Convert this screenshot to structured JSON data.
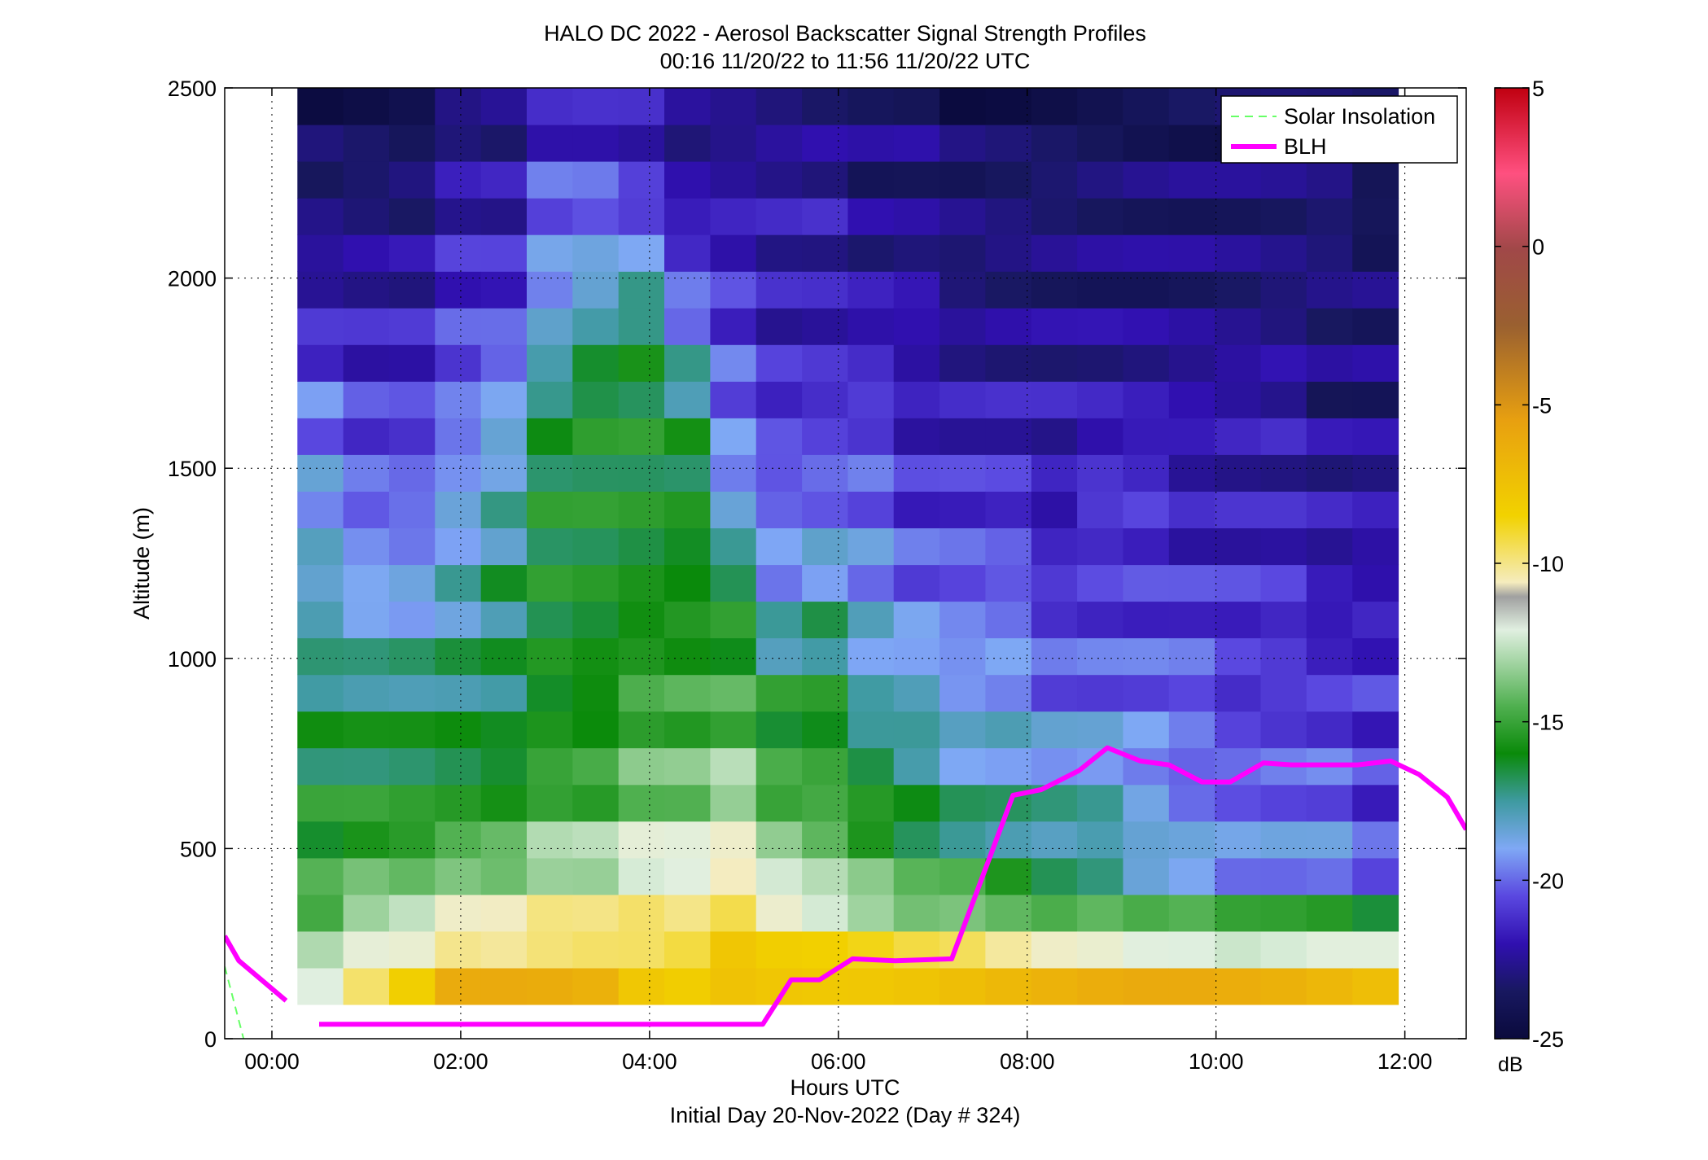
{
  "chart_data": {
    "type": "heatmap",
    "title": "HALO DC 2022 - Aerosol Backscatter Signal Strength Profiles",
    "subtitle": "00:16 11/20/22 to 11:56 11/20/22  UTC",
    "xlabel": "Hours UTC",
    "xlabel2": "Initial Day 20-Nov-2022 (Day # 324)",
    "ylabel": "Altitude (m)",
    "xlim": [
      -0.5,
      12.65
    ],
    "ylim": [
      0,
      2500
    ],
    "x_ticks": [
      0,
      2,
      4,
      6,
      8,
      10,
      12
    ],
    "x_tick_labels": [
      "00:00",
      "02:00",
      "04:00",
      "06:00",
      "08:00",
      "10:00",
      "12:00"
    ],
    "y_ticks": [
      0,
      500,
      1000,
      1500,
      2000,
      2500
    ],
    "y_tick_labels": [
      "0",
      "500",
      "1000",
      "1500",
      "2000",
      "2500"
    ],
    "grid": true,
    "legend_placement": "top-right",
    "colorbar": {
      "label": "dB",
      "range": [
        -25,
        5
      ],
      "ticks": [
        5,
        0,
        -5,
        -10,
        -15,
        -20,
        -25
      ],
      "tick_labels": [
        "5",
        "0",
        "-5",
        "-10",
        "-15",
        "-20",
        "-25"
      ]
    },
    "heatmap": {
      "time_range": [
        0.27,
        11.93
      ],
      "altitude_range": [
        90,
        2500
      ],
      "columns": 24,
      "rows": 25,
      "columns_profile_db": [
        [
          -12,
          -15,
          -16,
          -17,
          -18,
          -19,
          -20,
          -22,
          -23,
          -24
        ],
        [
          -10,
          -14,
          -16,
          -17,
          -19,
          -20,
          -21,
          -22,
          -23,
          -24
        ],
        [
          -9,
          -14,
          -16,
          -17,
          -19,
          -20,
          -21,
          -22,
          -23,
          -24
        ],
        [
          -7,
          -13,
          -16,
          -17,
          -18,
          -19,
          -20,
          -21,
          -22,
          -23
        ],
        [
          -7,
          -13,
          -16,
          -17,
          -17,
          -18,
          -19,
          -21,
          -22,
          -23
        ],
        [
          -7,
          -12,
          -15,
          -16,
          -16,
          -16,
          -17,
          -19,
          -20,
          -22
        ],
        [
          -7,
          -12,
          -15,
          -16,
          -16,
          -16,
          -16,
          -18,
          -20,
          -22
        ],
        [
          -8,
          -11,
          -14,
          -15,
          -16,
          -16,
          -16,
          -17,
          -21,
          -22
        ],
        [
          -8,
          -11,
          -14,
          -15,
          -16,
          -16,
          -17,
          -20,
          -22,
          -23
        ],
        [
          -7,
          -10,
          -13,
          -15,
          -16,
          -19,
          -20,
          -21,
          -22,
          -23
        ],
        [
          -7,
          -12,
          -15,
          -16,
          -19,
          -20,
          -21,
          -22,
          -22,
          -23
        ],
        [
          -7,
          -13,
          -15,
          -16,
          -18,
          -20,
          -21,
          -22,
          -22,
          -23
        ],
        [
          -7,
          -14,
          -16,
          -18,
          -19,
          -20,
          -21,
          -22,
          -23,
          -23
        ],
        [
          -7,
          -15,
          -17,
          -18,
          -20,
          -21,
          -22,
          -22,
          -23,
          -23
        ],
        [
          -7,
          -15,
          -18,
          -19,
          -20,
          -21,
          -22,
          -23,
          -23,
          -24
        ],
        [
          -7,
          -16,
          -18,
          -19,
          -20,
          -21,
          -22,
          -23,
          -23,
          -24
        ],
        [
          -7,
          -17,
          -18,
          -20,
          -21,
          -22,
          -22,
          -23,
          -23,
          -24
        ],
        [
          -7,
          -17,
          -18,
          -20,
          -21,
          -21,
          -22,
          -23,
          -23,
          -24
        ],
        [
          -7,
          -18,
          -19,
          -20,
          -21,
          -21,
          -22,
          -23,
          -23,
          -24
        ],
        [
          -7,
          -18,
          -20,
          -20,
          -21,
          -22,
          -22,
          -23,
          -23,
          -24
        ],
        [
          -7,
          -19,
          -20,
          -21,
          -21,
          -22,
          -22,
          -23,
          -23,
          -24
        ],
        [
          -7,
          -19,
          -20,
          -21,
          -21,
          -22,
          -22,
          -23,
          -23,
          -24
        ],
        [
          -7,
          -19,
          -20,
          -21,
          -22,
          -22,
          -23,
          -23,
          -23,
          -24
        ],
        [
          -7,
          -20,
          -21,
          -21,
          -22,
          -22,
          -23,
          -23,
          -24,
          -24
        ]
      ]
    },
    "series": [
      {
        "name": "Solar Insolation",
        "style": "dashed",
        "color": "#66ff66",
        "x": [
          -0.5,
          -0.3
        ],
        "y": [
          190,
          0
        ]
      },
      {
        "name": "BLH",
        "style": "solid",
        "color": "#ff00ff",
        "segments": [
          {
            "x": [
              -0.5,
              -0.35,
              0.15
            ],
            "y": [
              270,
              205,
              100
            ]
          },
          {
            "x": [
              0.5,
              5.2,
              5.5,
              5.8,
              6.15,
              6.6,
              7.2,
              7.85,
              8.15,
              8.55,
              8.85,
              9.2,
              9.5,
              9.85,
              10.15,
              10.5,
              10.8,
              11.2,
              11.5,
              11.85,
              12.15,
              12.45,
              12.65
            ],
            "y": [
              38,
              38,
              155,
              155,
              210,
              205,
              210,
              640,
              655,
              705,
              765,
              730,
              720,
              675,
              675,
              725,
              720,
              720,
              720,
              730,
              695,
              635,
              550
            ]
          }
        ]
      }
    ]
  }
}
